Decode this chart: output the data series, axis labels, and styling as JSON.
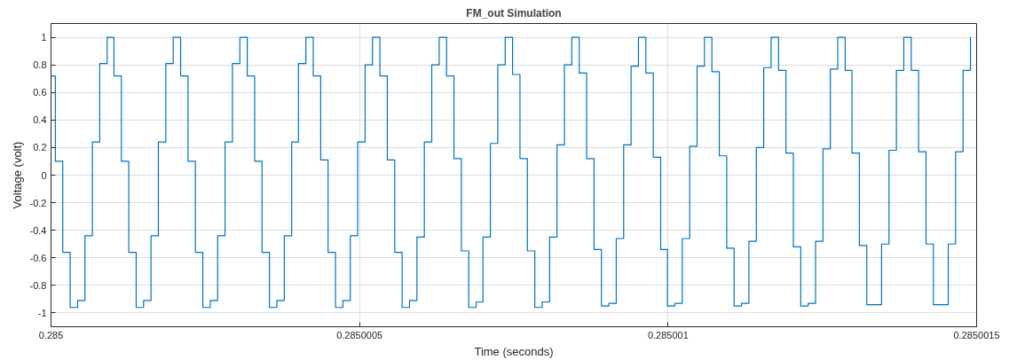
{
  "chart_data": {
    "type": "step",
    "title": "FM_out Simulation",
    "xlabel": "Time (seconds)",
    "ylabel": "Voltage (volt)",
    "x": [
      0.285,
      0.285000007,
      0.285000019,
      0.285000031,
      0.285000043,
      0.285000055,
      0.285000067,
      0.285000079,
      0.285000091,
      0.285000102,
      0.285000114,
      0.285000126,
      0.285000138,
      0.28500015,
      0.285000162,
      0.285000174,
      0.285000186,
      0.285000198,
      0.28500021,
      0.285000222,
      0.285000234,
      0.285000246,
      0.285000258,
      0.28500027,
      0.285000282,
      0.285000294,
      0.285000306,
      0.285000318,
      0.28500033,
      0.285000342,
      0.285000354,
      0.285000366,
      0.285000378,
      0.28500039,
      0.285000401,
      0.285000413,
      0.285000425,
      0.285000437,
      0.285000449,
      0.285000461,
      0.285000473,
      0.285000485,
      0.285000497,
      0.285000509,
      0.285000521,
      0.285000533,
      0.285000545,
      0.285000557,
      0.285000569,
      0.285000581,
      0.285000593,
      0.285000605,
      0.285000617,
      0.285000629,
      0.285000641,
      0.285000653,
      0.285000665,
      0.285000677,
      0.285000689,
      0.2850007,
      0.285000712,
      0.285000724,
      0.285000736,
      0.285000748,
      0.28500076,
      0.285000772,
      0.285000784,
      0.285000796,
      0.285000808,
      0.28500082,
      0.285000832,
      0.285000844,
      0.285000856,
      0.285000868,
      0.28500088,
      0.285000892,
      0.285000904,
      0.285000916,
      0.285000928,
      0.28500094,
      0.285000952,
      0.285000964,
      0.285000976,
      0.285000988,
      0.285000999,
      0.285001011,
      0.285001023,
      0.285001035,
      0.285001047,
      0.285001059,
      0.285001071,
      0.285001083,
      0.285001095,
      0.285001107,
      0.285001119,
      0.285001131,
      0.285001143,
      0.285001155,
      0.285001167,
      0.285001179,
      0.285001191,
      0.285001203,
      0.285001215,
      0.285001227,
      0.285001239,
      0.285001251,
      0.285001263,
      0.285001275,
      0.285001287,
      0.285001298,
      0.28500131,
      0.285001322,
      0.285001334,
      0.285001346,
      0.285001358,
      0.28500137,
      0.285001382,
      0.285001394,
      0.285001406,
      0.285001418,
      0.28500143,
      0.285001442,
      0.285001454,
      0.285001466,
      0.285001478,
      0.28500149
    ],
    "series": [
      {
        "color": "#0072bd",
        "values": [
          0.72,
          0.1,
          -0.56,
          -0.96,
          -0.91,
          -0.44,
          0.24,
          0.81,
          1.0,
          0.72,
          0.1,
          -0.56,
          -0.96,
          -0.91,
          -0.44,
          0.24,
          0.81,
          1.0,
          0.72,
          0.1,
          -0.56,
          -0.96,
          -0.91,
          -0.44,
          0.24,
          0.81,
          1.0,
          0.72,
          0.1,
          -0.56,
          -0.96,
          -0.91,
          -0.44,
          0.24,
          0.81,
          1.0,
          0.72,
          0.11,
          -0.56,
          -0.96,
          -0.91,
          -0.44,
          0.24,
          0.8,
          1.0,
          0.72,
          0.11,
          -0.56,
          -0.96,
          -0.91,
          -0.45,
          0.24,
          0.8,
          1.0,
          0.72,
          0.12,
          -0.55,
          -0.96,
          -0.92,
          -0.45,
          0.23,
          0.8,
          1.0,
          0.73,
          0.12,
          -0.55,
          -0.96,
          -0.92,
          -0.45,
          0.22,
          0.8,
          1.0,
          0.74,
          0.12,
          -0.54,
          -0.95,
          -0.93,
          -0.46,
          0.22,
          0.79,
          1.0,
          0.74,
          0.13,
          -0.54,
          -0.95,
          -0.93,
          -0.46,
          0.21,
          0.79,
          1.0,
          0.75,
          0.14,
          -0.53,
          -0.95,
          -0.93,
          -0.48,
          0.2,
          0.78,
          1.0,
          0.76,
          0.16,
          -0.52,
          -0.95,
          -0.93,
          -0.48,
          0.19,
          0.77,
          1.0,
          0.76,
          0.16,
          -0.51,
          -0.94,
          -0.94,
          -0.5,
          0.18,
          0.76,
          1.0,
          0.76,
          0.17,
          -0.5,
          -0.94,
          -0.94,
          -0.5,
          0.17,
          0.76,
          1.0
        ]
      }
    ],
    "xlim": [
      0.285,
      0.2850015
    ],
    "xticks": [
      0.285,
      0.2850005,
      0.285001,
      0.2850015
    ],
    "ylim": [
      -1.1,
      1.1
    ],
    "yticks": [
      -1,
      -0.8,
      -0.6,
      -0.4,
      -0.2,
      0,
      0.2,
      0.4,
      0.6,
      0.8,
      1
    ],
    "grid": true,
    "line_style": "solid"
  }
}
